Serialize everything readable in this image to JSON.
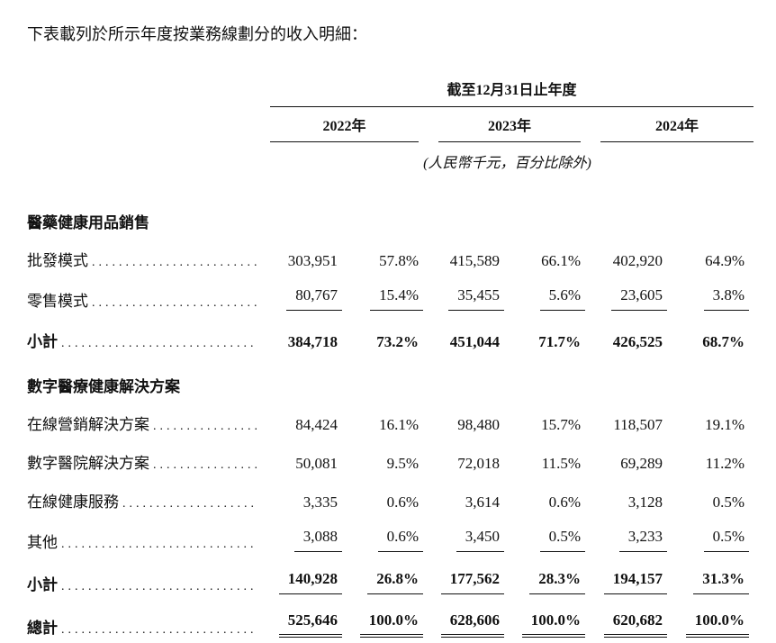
{
  "intro": "下表載列於所示年度按業務線劃分的收入明細：",
  "table": {
    "period_header": "截至12月31日止年度",
    "years": [
      "2022年",
      "2023年",
      "2024年"
    ],
    "unit_note": "(人民幣千元，百分比除外)",
    "sections": [
      {
        "header": "醫藥健康用品銷售",
        "rows": [
          {
            "label": "批發模式",
            "values": [
              "303,951",
              "57.8%",
              "415,589",
              "66.1%",
              "402,920",
              "64.9%"
            ]
          },
          {
            "label": "零售模式",
            "values": [
              "80,767",
              "15.4%",
              "35,455",
              "5.6%",
              "23,605",
              "3.8%"
            ]
          }
        ],
        "subtotal": {
          "label": "小計",
          "values": [
            "384,718",
            "73.2%",
            "451,044",
            "71.7%",
            "426,525",
            "68.7%"
          ]
        }
      },
      {
        "header": "數字醫療健康解決方案",
        "rows": [
          {
            "label": "在線營銷解決方案",
            "values": [
              "84,424",
              "16.1%",
              "98,480",
              "15.7%",
              "118,507",
              "19.1%"
            ]
          },
          {
            "label": "數字醫院解決方案",
            "values": [
              "50,081",
              "9.5%",
              "72,018",
              "11.5%",
              "69,289",
              "11.2%"
            ]
          },
          {
            "label": "在線健康服務",
            "values": [
              "3,335",
              "0.6%",
              "3,614",
              "0.6%",
              "3,128",
              "0.5%"
            ]
          },
          {
            "label": "其他",
            "values": [
              "3,088",
              "0.6%",
              "3,450",
              "0.5%",
              "3,233",
              "0.5%"
            ]
          }
        ],
        "subtotal": {
          "label": "小計",
          "values": [
            "140,928",
            "26.8%",
            "177,562",
            "28.3%",
            "194,157",
            "31.3%"
          ]
        }
      }
    ],
    "total": {
      "label": "總計",
      "values": [
        "525,646",
        "100.0%",
        "628,606",
        "100.0%",
        "620,682",
        "100.0%"
      ]
    }
  }
}
